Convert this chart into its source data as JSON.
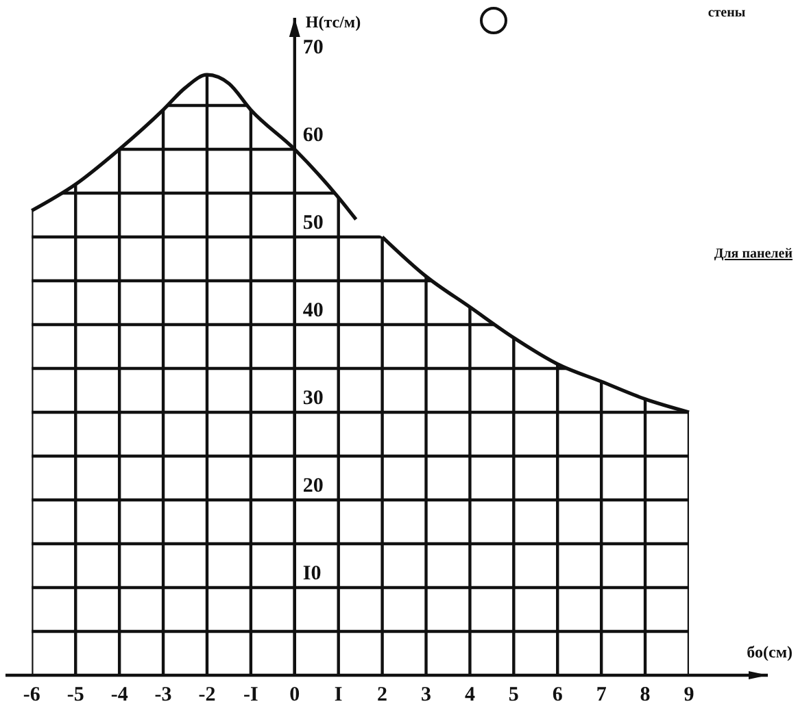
{
  "chart_data": {
    "type": "line",
    "xlabel": "бо(см)",
    "ylabel": "Н(тс/м)",
    "annotations": [
      "стены",
      "Для панелей"
    ],
    "x": [
      -6,
      -5,
      -4,
      -3,
      -2.5,
      -2,
      -1.5,
      -1,
      0,
      1,
      1.4,
      1.6,
      2,
      3,
      4,
      5,
      6,
      7,
      8,
      9
    ],
    "series": [
      {
        "color": "#111111",
        "values": [
          53,
          56,
          60,
          64.5,
          67,
          68.5,
          67.5,
          64.5,
          60,
          54.5,
          52,
          null,
          50,
          45.5,
          42,
          38.5,
          35.5,
          33.5,
          31.5,
          30
        ]
      }
    ],
    "xlim": [
      -6.6,
      10.8
    ],
    "ylim": [
      0,
      75
    ],
    "xticks": [
      -6,
      -5,
      -4,
      -3,
      -2,
      {
        "value": -1,
        "label": "-I"
      },
      0,
      {
        "value": 1,
        "label": "I"
      },
      2,
      3,
      4,
      5,
      6,
      7,
      8,
      9
    ],
    "yticks": [
      {
        "value": 5,
        "label": null
      },
      {
        "value": 10,
        "label": "I0"
      },
      {
        "value": 15,
        "label": null
      },
      20,
      {
        "value": 25,
        "label": null
      },
      30,
      {
        "value": 35,
        "label": null
      },
      40,
      {
        "value": 45,
        "label": null
      },
      50,
      {
        "value": 55,
        "label": null
      },
      60,
      {
        "value": 65,
        "label": null
      },
      70
    ],
    "grid": true,
    "marker": "none",
    "line_style": "solid"
  }
}
